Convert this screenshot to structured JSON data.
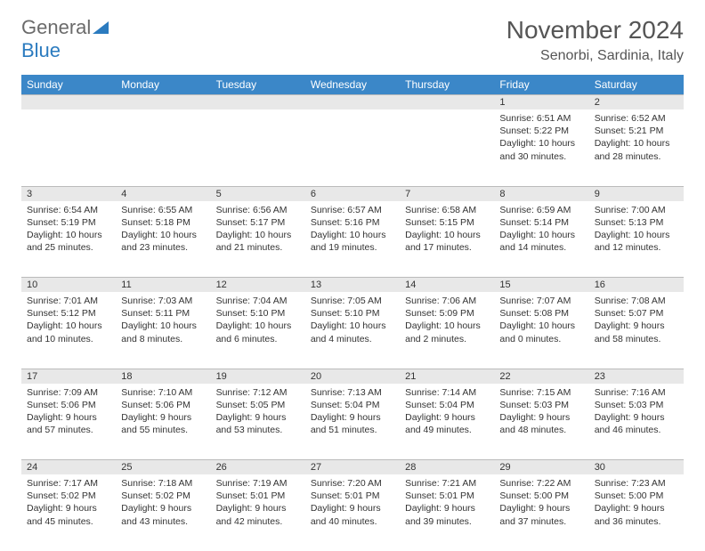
{
  "logo": {
    "text_gray": "General",
    "text_blue": "Blue"
  },
  "title": "November 2024",
  "location": "Senorbi, Sardinia, Italy",
  "colors": {
    "header_bg": "#3b87c8",
    "header_text": "#ffffff",
    "daynum_bg": "#e8e8e8",
    "text": "#333333",
    "logo_gray": "#6b6b6b",
    "logo_blue": "#2b7bbf"
  },
  "weekdays": [
    "Sunday",
    "Monday",
    "Tuesday",
    "Wednesday",
    "Thursday",
    "Friday",
    "Saturday"
  ],
  "weeks": [
    {
      "nums": [
        "",
        "",
        "",
        "",
        "",
        "1",
        "2"
      ],
      "cells": [
        null,
        null,
        null,
        null,
        null,
        {
          "sunrise": "Sunrise: 6:51 AM",
          "sunset": "Sunset: 5:22 PM",
          "daylight": "Daylight: 10 hours and 30 minutes."
        },
        {
          "sunrise": "Sunrise: 6:52 AM",
          "sunset": "Sunset: 5:21 PM",
          "daylight": "Daylight: 10 hours and 28 minutes."
        }
      ]
    },
    {
      "nums": [
        "3",
        "4",
        "5",
        "6",
        "7",
        "8",
        "9"
      ],
      "cells": [
        {
          "sunrise": "Sunrise: 6:54 AM",
          "sunset": "Sunset: 5:19 PM",
          "daylight": "Daylight: 10 hours and 25 minutes."
        },
        {
          "sunrise": "Sunrise: 6:55 AM",
          "sunset": "Sunset: 5:18 PM",
          "daylight": "Daylight: 10 hours and 23 minutes."
        },
        {
          "sunrise": "Sunrise: 6:56 AM",
          "sunset": "Sunset: 5:17 PM",
          "daylight": "Daylight: 10 hours and 21 minutes."
        },
        {
          "sunrise": "Sunrise: 6:57 AM",
          "sunset": "Sunset: 5:16 PM",
          "daylight": "Daylight: 10 hours and 19 minutes."
        },
        {
          "sunrise": "Sunrise: 6:58 AM",
          "sunset": "Sunset: 5:15 PM",
          "daylight": "Daylight: 10 hours and 17 minutes."
        },
        {
          "sunrise": "Sunrise: 6:59 AM",
          "sunset": "Sunset: 5:14 PM",
          "daylight": "Daylight: 10 hours and 14 minutes."
        },
        {
          "sunrise": "Sunrise: 7:00 AM",
          "sunset": "Sunset: 5:13 PM",
          "daylight": "Daylight: 10 hours and 12 minutes."
        }
      ]
    },
    {
      "nums": [
        "10",
        "11",
        "12",
        "13",
        "14",
        "15",
        "16"
      ],
      "cells": [
        {
          "sunrise": "Sunrise: 7:01 AM",
          "sunset": "Sunset: 5:12 PM",
          "daylight": "Daylight: 10 hours and 10 minutes."
        },
        {
          "sunrise": "Sunrise: 7:03 AM",
          "sunset": "Sunset: 5:11 PM",
          "daylight": "Daylight: 10 hours and 8 minutes."
        },
        {
          "sunrise": "Sunrise: 7:04 AM",
          "sunset": "Sunset: 5:10 PM",
          "daylight": "Daylight: 10 hours and 6 minutes."
        },
        {
          "sunrise": "Sunrise: 7:05 AM",
          "sunset": "Sunset: 5:10 PM",
          "daylight": "Daylight: 10 hours and 4 minutes."
        },
        {
          "sunrise": "Sunrise: 7:06 AM",
          "sunset": "Sunset: 5:09 PM",
          "daylight": "Daylight: 10 hours and 2 minutes."
        },
        {
          "sunrise": "Sunrise: 7:07 AM",
          "sunset": "Sunset: 5:08 PM",
          "daylight": "Daylight: 10 hours and 0 minutes."
        },
        {
          "sunrise": "Sunrise: 7:08 AM",
          "sunset": "Sunset: 5:07 PM",
          "daylight": "Daylight: 9 hours and 58 minutes."
        }
      ]
    },
    {
      "nums": [
        "17",
        "18",
        "19",
        "20",
        "21",
        "22",
        "23"
      ],
      "cells": [
        {
          "sunrise": "Sunrise: 7:09 AM",
          "sunset": "Sunset: 5:06 PM",
          "daylight": "Daylight: 9 hours and 57 minutes."
        },
        {
          "sunrise": "Sunrise: 7:10 AM",
          "sunset": "Sunset: 5:06 PM",
          "daylight": "Daylight: 9 hours and 55 minutes."
        },
        {
          "sunrise": "Sunrise: 7:12 AM",
          "sunset": "Sunset: 5:05 PM",
          "daylight": "Daylight: 9 hours and 53 minutes."
        },
        {
          "sunrise": "Sunrise: 7:13 AM",
          "sunset": "Sunset: 5:04 PM",
          "daylight": "Daylight: 9 hours and 51 minutes."
        },
        {
          "sunrise": "Sunrise: 7:14 AM",
          "sunset": "Sunset: 5:04 PM",
          "daylight": "Daylight: 9 hours and 49 minutes."
        },
        {
          "sunrise": "Sunrise: 7:15 AM",
          "sunset": "Sunset: 5:03 PM",
          "daylight": "Daylight: 9 hours and 48 minutes."
        },
        {
          "sunrise": "Sunrise: 7:16 AM",
          "sunset": "Sunset: 5:03 PM",
          "daylight": "Daylight: 9 hours and 46 minutes."
        }
      ]
    },
    {
      "nums": [
        "24",
        "25",
        "26",
        "27",
        "28",
        "29",
        "30"
      ],
      "cells": [
        {
          "sunrise": "Sunrise: 7:17 AM",
          "sunset": "Sunset: 5:02 PM",
          "daylight": "Daylight: 9 hours and 45 minutes."
        },
        {
          "sunrise": "Sunrise: 7:18 AM",
          "sunset": "Sunset: 5:02 PM",
          "daylight": "Daylight: 9 hours and 43 minutes."
        },
        {
          "sunrise": "Sunrise: 7:19 AM",
          "sunset": "Sunset: 5:01 PM",
          "daylight": "Daylight: 9 hours and 42 minutes."
        },
        {
          "sunrise": "Sunrise: 7:20 AM",
          "sunset": "Sunset: 5:01 PM",
          "daylight": "Daylight: 9 hours and 40 minutes."
        },
        {
          "sunrise": "Sunrise: 7:21 AM",
          "sunset": "Sunset: 5:01 PM",
          "daylight": "Daylight: 9 hours and 39 minutes."
        },
        {
          "sunrise": "Sunrise: 7:22 AM",
          "sunset": "Sunset: 5:00 PM",
          "daylight": "Daylight: 9 hours and 37 minutes."
        },
        {
          "sunrise": "Sunrise: 7:23 AM",
          "sunset": "Sunset: 5:00 PM",
          "daylight": "Daylight: 9 hours and 36 minutes."
        }
      ]
    }
  ]
}
